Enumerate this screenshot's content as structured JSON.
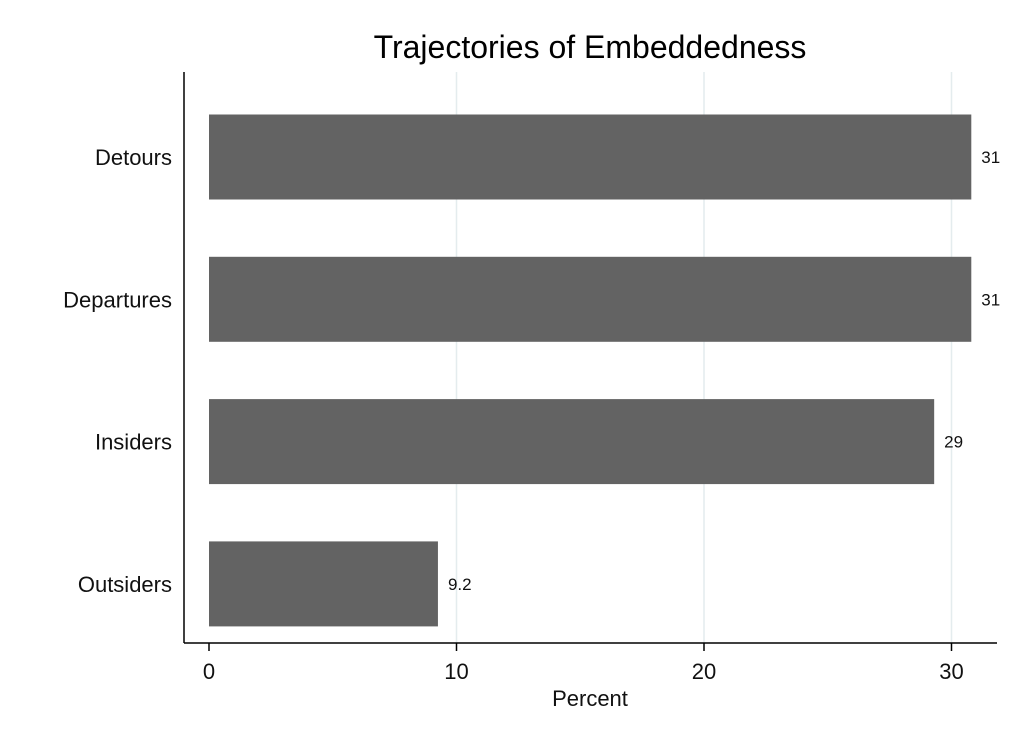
{
  "chart_data": {
    "type": "bar",
    "orientation": "horizontal",
    "title": "Trajectories of Embeddedness",
    "xlabel": "Percent",
    "ylabel": "",
    "categories": [
      "Detours",
      "Departures",
      "Insiders",
      "Outsiders"
    ],
    "values": [
      30.8,
      30.8,
      29.3,
      9.25
    ],
    "value_labels": [
      "31",
      "31",
      "29",
      "9.2"
    ],
    "xlim": [
      0,
      31
    ],
    "xticks": [
      0,
      10,
      20,
      30
    ],
    "xtick_labels": [
      "0",
      "10",
      "20",
      "30"
    ],
    "grid": true,
    "legend": "none",
    "bar_color": "#636363",
    "grid_color": "#e4ecee"
  }
}
